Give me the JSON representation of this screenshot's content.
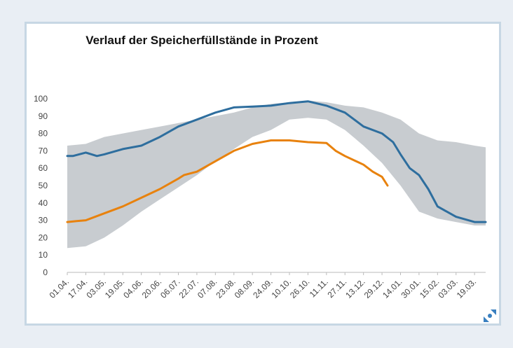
{
  "chart_data": {
    "type": "line",
    "title": "Verlauf der Speicherfüllstände in Prozent",
    "xlabel": "",
    "ylabel": "",
    "ylim": [
      0,
      100
    ],
    "y_ticks": [
      0,
      10,
      20,
      30,
      40,
      50,
      60,
      70,
      80,
      90,
      100
    ],
    "x_ticks": [
      "01.04.",
      "17.04.",
      "03.05.",
      "19.05.",
      "04.06.",
      "20.06.",
      "06.07.",
      "22.07.",
      "07.08.",
      "23.08.",
      "08.09.",
      "24.09.",
      "10.10.",
      "26.10.",
      "11.11.",
      "27.11.",
      "13.12.",
      "29.12.",
      "14.01.",
      "30.01.",
      "15.02.",
      "03.03.",
      "19.03."
    ],
    "legend": "none",
    "grid": false,
    "range_band": {
      "color": "#c8ccd0",
      "x": [
        0,
        1,
        2,
        3,
        4,
        5,
        6,
        7,
        8,
        9,
        10,
        11,
        12,
        13,
        14,
        15,
        16,
        17,
        18,
        19,
        20,
        21,
        22,
        22.6
      ],
      "upper": [
        73,
        74,
        78,
        80,
        82,
        84,
        86,
        88,
        90,
        92,
        95,
        97,
        98,
        99,
        98,
        96,
        95,
        92,
        88,
        80,
        76,
        75,
        73,
        72
      ],
      "lower": [
        14,
        15,
        20,
        27,
        35,
        42,
        49,
        56,
        64,
        71,
        78,
        82,
        88,
        89,
        88,
        82,
        73,
        63,
        50,
        35,
        31,
        29,
        27,
        27
      ]
    },
    "series": [
      {
        "color": "#2e6e9e",
        "x": [
          0,
          0.3,
          1,
          1.6,
          2,
          3,
          4,
          5,
          6,
          7,
          8,
          9,
          10,
          11,
          12,
          13,
          14,
          15,
          16,
          17,
          17.6,
          18,
          18.5,
          19,
          19.5,
          20,
          20.5,
          21,
          22,
          22.6
        ],
        "values": [
          67,
          67,
          69,
          67,
          68,
          71,
          73,
          78,
          84,
          88,
          92,
          95,
          95.5,
          96,
          97.5,
          98.5,
          96,
          92,
          84,
          80,
          75,
          68,
          60,
          56,
          48,
          38,
          35,
          32,
          29,
          29
        ]
      },
      {
        "color": "#e8820e",
        "x": [
          0,
          0.5,
          1,
          2,
          3,
          4,
          5,
          6,
          6.3,
          7,
          8,
          9,
          10,
          11,
          12,
          13,
          14,
          14.5,
          15,
          16,
          16.5,
          17,
          17.3
        ],
        "values": [
          29,
          29.5,
          30,
          34,
          38,
          43,
          48,
          54,
          56,
          58,
          64,
          70,
          74,
          76,
          76,
          75,
          74.5,
          70,
          67,
          62,
          58,
          55,
          50
        ]
      }
    ]
  }
}
